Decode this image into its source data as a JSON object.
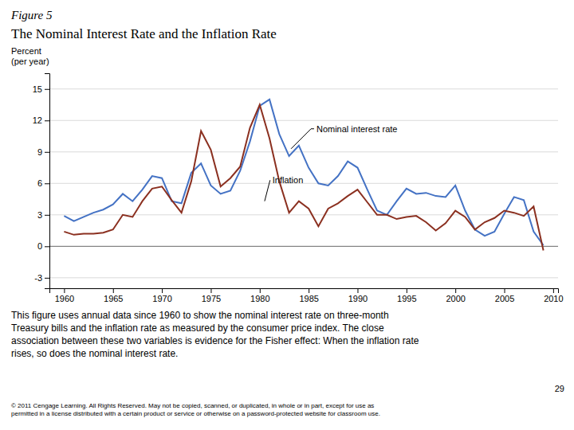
{
  "chart_data": {
    "type": "line",
    "figure_label": "Figure 5",
    "title": "The Nominal Interest Rate and the Inflation Rate",
    "y_label": "Percent\n(per year)",
    "x": [
      1960,
      1961,
      1962,
      1963,
      1964,
      1965,
      1966,
      1967,
      1968,
      1969,
      1970,
      1971,
      1972,
      1973,
      1974,
      1975,
      1976,
      1977,
      1978,
      1979,
      1980,
      1981,
      1982,
      1983,
      1984,
      1985,
      1986,
      1987,
      1988,
      1989,
      1990,
      1991,
      1992,
      1993,
      1994,
      1995,
      1996,
      1997,
      1998,
      1999,
      2000,
      2001,
      2002,
      2003,
      2004,
      2005,
      2006,
      2007,
      2008,
      2009
    ],
    "series": [
      {
        "color": "#4472c4",
        "values": [
          2.9,
          2.4,
          2.8,
          3.2,
          3.5,
          4.0,
          5.0,
          4.3,
          5.4,
          6.7,
          6.5,
          4.3,
          4.1,
          7.0,
          7.9,
          5.8,
          5.0,
          5.3,
          7.2,
          10.0,
          13.4,
          14.0,
          10.7,
          8.6,
          9.6,
          7.5,
          6.0,
          5.8,
          6.7,
          8.1,
          7.5,
          5.4,
          3.4,
          3.0,
          4.3,
          5.5,
          5.0,
          5.1,
          4.8,
          4.7,
          5.8,
          3.4,
          1.6,
          1.0,
          1.4,
          3.1,
          4.7,
          4.4,
          1.4,
          0.1
        ]
      },
      {
        "color": "#8b3020",
        "values": [
          1.4,
          1.1,
          1.2,
          1.2,
          1.3,
          1.6,
          3.0,
          2.8,
          4.3,
          5.5,
          5.7,
          4.4,
          3.2,
          6.2,
          11.0,
          9.2,
          5.7,
          6.5,
          7.6,
          11.3,
          13.5,
          10.3,
          6.2,
          3.2,
          4.3,
          3.6,
          1.9,
          3.6,
          4.1,
          4.8,
          5.4,
          4.2,
          3.0,
          3.0,
          2.6,
          2.8,
          2.9,
          2.3,
          1.5,
          2.2,
          3.4,
          2.8,
          1.6,
          2.3,
          2.7,
          3.4,
          3.2,
          2.9,
          3.8,
          -0.4
        ]
      }
    ],
    "xlim": [
      1958.5,
      2010.5
    ],
    "xticks": [
      1960,
      1965,
      1970,
      1975,
      1980,
      1985,
      1990,
      1995,
      2000,
      2005,
      2010
    ],
    "ylim": [
      -4.0,
      16.5
    ],
    "yticks": [
      -3,
      0,
      3,
      6,
      9,
      12,
      15
    ],
    "grid": true,
    "annotations": [
      {
        "text": "Nominal interest rate",
        "x": 1983.2,
        "y": 9.3,
        "label_x": 1985.8,
        "label_y": 10.9
      },
      {
        "text": "Inflation",
        "x": 1980.5,
        "y": 4.3,
        "label_x": 1981.3,
        "label_y": 6.0
      }
    ],
    "caption": "This figure uses annual data since 1960 to show the nominal interest rate on three-month\nTreasury bills and the inflation rate as measured by the consumer price index. The close\nassociation between these two variables is evidence for the Fisher effect: When the inflation rate\nrises, so does the nominal interest rate.",
    "footnote": "© 2011 Cengage Learning. All Rights Reserved. May not be copied, scanned, or duplicated, in whole or in part, except for use as\npermitted in a license distributed with a certain product or service or otherwise on a password-protected website for classroom use.",
    "page_number": "29"
  }
}
